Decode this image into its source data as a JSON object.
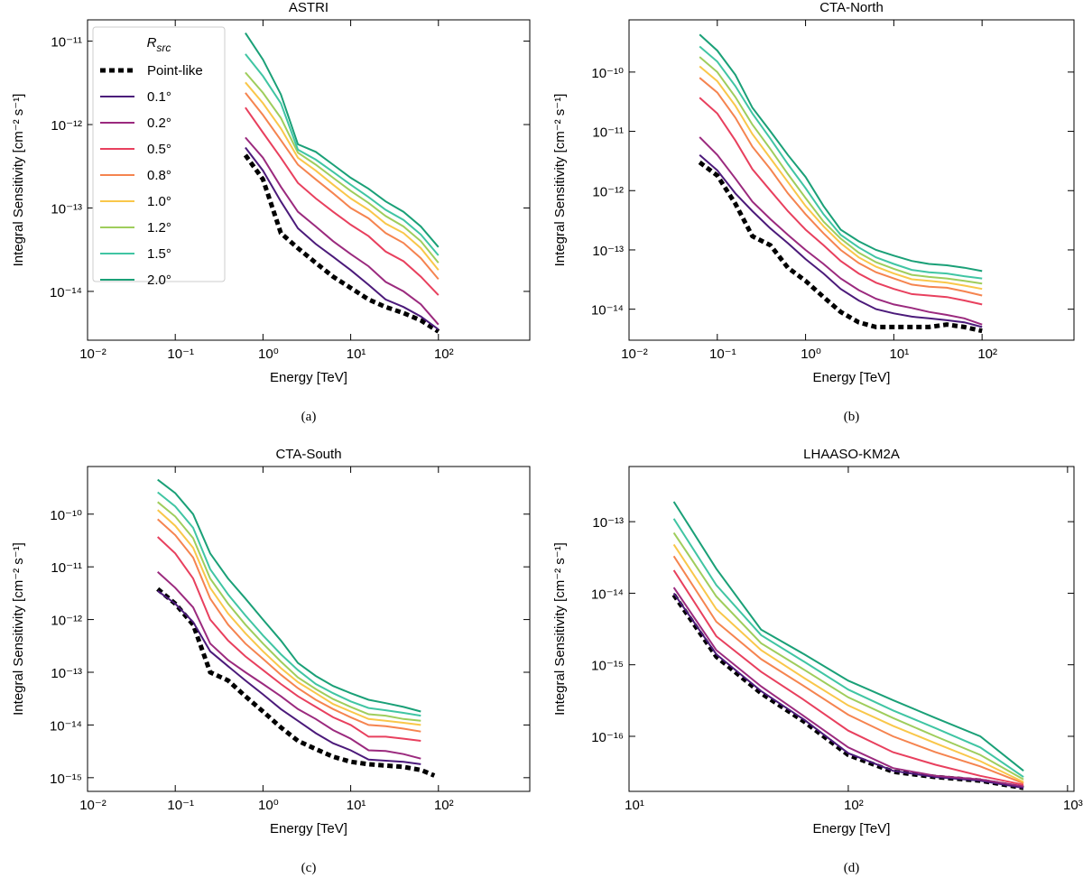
{
  "chart_data": [
    {
      "type": "line",
      "title": "ASTRI",
      "caption": "(a)",
      "xlabel": "Energy [TeV]",
      "ylabel": "Integral Sensitivity [cm⁻² s⁻¹]",
      "log_x": true,
      "log_y": true,
      "legend": "upper left",
      "legend_title": "R",
      "legend_title_subscript": "src",
      "xlim": [
        0.01,
        1100
      ],
      "ylim": [
        2.6e-15,
        1.8e-11
      ],
      "xticks": [
        {
          "value": 0.01,
          "label": "10⁻²"
        },
        {
          "value": 0.1,
          "label": "10⁻¹"
        },
        {
          "value": 1,
          "label": "10⁰"
        },
        {
          "value": 10,
          "label": "10¹"
        },
        {
          "value": 100,
          "label": "10²"
        }
      ],
      "yticks": [
        {
          "value": 1e-14,
          "label": "10⁻¹⁴"
        },
        {
          "value": 1e-13,
          "label": "10⁻¹³"
        },
        {
          "value": 1e-12,
          "label": "10⁻¹²"
        },
        {
          "value": 1e-11,
          "label": "10⁻¹¹"
        }
      ],
      "x": [
        0.63,
        1.0,
        1.6,
        2.5,
        4,
        6.3,
        10,
        16,
        25,
        40,
        63,
        100
      ],
      "series": [
        {
          "name": "Point-like",
          "color": "#000000",
          "linestyle": "dotted",
          "values": [
            4.3e-13,
            2.2e-13,
            5e-14,
            3.3e-14,
            2.2e-14,
            1.5e-14,
            1.1e-14,
            8e-15,
            6.5e-15,
            5.5e-15,
            4.5e-15,
            3.3e-15
          ]
        },
        {
          "name": "0.1°",
          "color": "#4b1a7a",
          "values": [
            5.3e-13,
            2.8e-13,
            1.2e-13,
            5.7e-14,
            3.7e-14,
            2.6e-14,
            1.8e-14,
            1.2e-14,
            8e-15,
            6.5e-15,
            5e-15,
            3.5e-15
          ]
        },
        {
          "name": "0.2°",
          "color": "#9b2a7e",
          "values": [
            7e-13,
            4e-13,
            1.8e-13,
            9e-14,
            6e-14,
            4e-14,
            2.8e-14,
            2e-14,
            1.3e-14,
            1e-14,
            7e-15,
            4e-15
          ]
        },
        {
          "name": "0.5°",
          "color": "#e8405e",
          "values": [
            1.6e-12,
            8e-13,
            4e-13,
            2e-13,
            1.3e-13,
            9e-14,
            6.3e-14,
            4.6e-14,
            3e-14,
            2.3e-14,
            1.5e-14,
            9e-15
          ]
        },
        {
          "name": "0.8°",
          "color": "#f5844f",
          "values": [
            2.4e-12,
            1.3e-12,
            6.5e-13,
            3.3e-13,
            2.2e-13,
            1.5e-13,
            1e-13,
            7.5e-14,
            5e-14,
            3.8e-14,
            2.5e-14,
            1.4e-14
          ]
        },
        {
          "name": "1.0°",
          "color": "#f9c74a",
          "values": [
            3.2e-12,
            1.8e-12,
            9e-13,
            4e-13,
            2.8e-13,
            1.9e-13,
            1.3e-13,
            9.5e-14,
            6.5e-14,
            5e-14,
            3.3e-14,
            1.8e-14
          ]
        },
        {
          "name": "1.2°",
          "color": "#9fcd5c",
          "values": [
            4.2e-12,
            2.4e-12,
            1.2e-12,
            4.6e-13,
            3.3e-13,
            2.3e-13,
            1.6e-13,
            1.15e-13,
            8e-14,
            6e-14,
            4e-14,
            2.2e-14
          ]
        },
        {
          "name": "1.5°",
          "color": "#40c5a3",
          "values": [
            7e-12,
            3.8e-12,
            1.8e-12,
            5e-13,
            3.8e-13,
            2.7e-13,
            1.9e-13,
            1.35e-13,
            9.5e-14,
            7.2e-14,
            4.8e-14,
            2.7e-14
          ]
        },
        {
          "name": "2.0°",
          "color": "#1aa077",
          "values": [
            1.25e-11,
            6e-12,
            2.3e-12,
            5.8e-13,
            4.7e-13,
            3.3e-13,
            2.3e-13,
            1.7e-13,
            1.2e-13,
            9e-14,
            6e-14,
            3.4e-14
          ]
        }
      ]
    },
    {
      "type": "line",
      "title": "CTA-North",
      "caption": "(b)",
      "xlabel": "Energy [TeV]",
      "ylabel": "Integral Sensitivity [cm⁻² s⁻¹]",
      "log_x": true,
      "log_y": true,
      "xlim": [
        0.01,
        1100
      ],
      "ylim": [
        3e-15,
        7.6e-10
      ],
      "xticks": [
        {
          "value": 0.01,
          "label": "10⁻²"
        },
        {
          "value": 0.1,
          "label": "10⁻¹"
        },
        {
          "value": 1,
          "label": "10⁰"
        },
        {
          "value": 10,
          "label": "10¹"
        },
        {
          "value": 100,
          "label": "10²"
        }
      ],
      "yticks": [
        {
          "value": 1e-14,
          "label": "10⁻¹⁴"
        },
        {
          "value": 1e-13,
          "label": "10⁻¹³"
        },
        {
          "value": 1e-12,
          "label": "10⁻¹²"
        },
        {
          "value": 1e-11,
          "label": "10⁻¹¹"
        },
        {
          "value": 1e-10,
          "label": "10⁻¹⁰"
        }
      ],
      "x": [
        0.063,
        0.1,
        0.16,
        0.25,
        0.4,
        0.63,
        1,
        1.6,
        2.5,
        4,
        6.3,
        10,
        16,
        25,
        40,
        63,
        100
      ],
      "series": [
        {
          "name": "Point-like",
          "color": "#000000",
          "linestyle": "dotted",
          "values": [
            3e-12,
            1.8e-12,
            6e-13,
            1.7e-13,
            1.2e-13,
            5e-14,
            3e-14,
            1.6e-14,
            9e-15,
            6e-15,
            5e-15,
            5e-15,
            5e-15,
            5e-15,
            5.5e-15,
            5e-15,
            4.3e-15
          ]
        },
        {
          "name": "0.1°",
          "color": "#4b1a7a",
          "values": [
            4e-12,
            2.2e-12,
            9e-13,
            4.5e-13,
            2.3e-13,
            1.3e-13,
            7e-14,
            4e-14,
            2.2e-14,
            1.4e-14,
            1e-14,
            8.5e-15,
            7.5e-15,
            7e-15,
            6.5e-15,
            6e-15,
            5e-15
          ]
        },
        {
          "name": "0.2°",
          "color": "#9b2a7e",
          "values": [
            8e-12,
            4e-12,
            1.6e-12,
            6.5e-13,
            3.3e-13,
            1.8e-13,
            1e-13,
            5.8e-14,
            3.3e-14,
            2.1e-14,
            1.5e-14,
            1.2e-14,
            1.05e-14,
            9e-15,
            8e-15,
            7e-15,
            5.5e-15
          ]
        },
        {
          "name": "0.5°",
          "color": "#e8405e",
          "values": [
            3.7e-11,
            2e-11,
            7e-12,
            2.3e-12,
            1e-12,
            4.5e-13,
            2.2e-13,
            1.2e-13,
            6.5e-14,
            4e-14,
            2.8e-14,
            2.2e-14,
            1.8e-14,
            1.7e-14,
            1.6e-14,
            1.4e-14,
            1.2e-14
          ]
        },
        {
          "name": "0.8°",
          "color": "#f5844f",
          "values": [
            8e-11,
            4.5e-11,
            1.7e-11,
            5.5e-12,
            2.3e-12,
            9e-13,
            4e-13,
            1.9e-13,
            1e-13,
            6e-14,
            4.2e-14,
            3.3e-14,
            2.6e-14,
            2.4e-14,
            2.3e-14,
            2e-14,
            1.7e-14
          ]
        },
        {
          "name": "1.0°",
          "color": "#f9c74a",
          "values": [
            1.25e-10,
            7e-11,
            2.7e-11,
            9e-12,
            3.5e-12,
            1.4e-12,
            5.5e-13,
            2.5e-13,
            1.3e-13,
            7.5e-14,
            5.2e-14,
            4e-14,
            3.2e-14,
            3e-14,
            2.8e-14,
            2.5e-14,
            2.2e-14
          ]
        },
        {
          "name": "1.2°",
          "color": "#9fcd5c",
          "values": [
            1.8e-10,
            1e-10,
            3.8e-11,
            1.3e-11,
            5e-12,
            1.9e-12,
            7.5e-13,
            3e-13,
            1.55e-13,
            9e-14,
            6.2e-14,
            4.8e-14,
            3.8e-14,
            3.5e-14,
            3.3e-14,
            3e-14,
            2.7e-14
          ]
        },
        {
          "name": "1.5°",
          "color": "#40c5a3",
          "values": [
            2.7e-10,
            1.5e-10,
            5.8e-11,
            2e-11,
            7.5e-12,
            2.8e-12,
            1.1e-12,
            4e-13,
            1.8e-13,
            1.1e-13,
            7.5e-14,
            5.8e-14,
            4.6e-14,
            4.2e-14,
            4e-14,
            3.6e-14,
            3.3e-14
          ]
        },
        {
          "name": "2.0°",
          "color": "#1aa077",
          "values": [
            4.3e-10,
            2.3e-10,
            9e-11,
            2.5e-11,
            1e-11,
            4e-12,
            1.7e-12,
            5.5e-13,
            2.2e-13,
            1.4e-13,
            1e-13,
            8e-14,
            6.5e-14,
            5.8e-14,
            5.5e-14,
            5e-14,
            4.4e-14
          ]
        }
      ]
    },
    {
      "type": "line",
      "title": "CTA-South",
      "caption": "(c)",
      "xlabel": "Energy [TeV]",
      "ylabel": "Integral Sensitivity [cm⁻² s⁻¹]",
      "log_x": true,
      "log_y": true,
      "xlim": [
        0.01,
        1100
      ],
      "ylim": [
        5.5e-16,
        8e-10
      ],
      "xticks": [
        {
          "value": 0.01,
          "label": "10⁻²"
        },
        {
          "value": 0.1,
          "label": "10⁻¹"
        },
        {
          "value": 1,
          "label": "10⁰"
        },
        {
          "value": 10,
          "label": "10¹"
        },
        {
          "value": 100,
          "label": "10²"
        }
      ],
      "yticks": [
        {
          "value": 1e-15,
          "label": "10⁻¹⁵"
        },
        {
          "value": 1e-14,
          "label": "10⁻¹⁴"
        },
        {
          "value": 1e-13,
          "label": "10⁻¹³"
        },
        {
          "value": 1e-12,
          "label": "10⁻¹²"
        },
        {
          "value": 1e-11,
          "label": "10⁻¹¹"
        },
        {
          "value": 1e-10,
          "label": "10⁻¹⁰"
        }
      ],
      "x": [
        0.063,
        0.1,
        0.16,
        0.25,
        0.4,
        0.63,
        1,
        1.6,
        2.5,
        4,
        6.3,
        10,
        16,
        25,
        40,
        63
      ],
      "series": [
        {
          "name": "Point-like",
          "color": "#000000",
          "linestyle": "dotted",
          "x": [
            0.063,
            0.1,
            0.16,
            0.25,
            0.4,
            0.63,
            1,
            1.6,
            2.5,
            4,
            6.3,
            10,
            16,
            25,
            40,
            63,
            90
          ],
          "values": [
            3.8e-12,
            2e-12,
            8e-13,
            1e-13,
            7e-14,
            3.5e-14,
            1.8e-14,
            9e-15,
            5e-15,
            3.5e-15,
            2.5e-15,
            2e-15,
            1.8e-15,
            1.7e-15,
            1.6e-15,
            1.4e-15,
            1.1e-15
          ]
        },
        {
          "name": "0.1°",
          "color": "#4b1a7a",
          "values": [
            3.5e-12,
            2e-12,
            9e-13,
            2.5e-13,
            1.3e-13,
            7e-14,
            3.8e-14,
            2e-14,
            1.2e-14,
            7e-15,
            4.5e-15,
            3.3e-15,
            2.2e-15,
            2.1e-15,
            2e-15,
            1.8e-15
          ]
        },
        {
          "name": "0.2°",
          "color": "#9b2a7e",
          "values": [
            8e-12,
            4e-12,
            1.7e-12,
            3.5e-13,
            1.7e-13,
            1e-13,
            6e-14,
            3.5e-14,
            2e-14,
            1.3e-14,
            8e-15,
            5.5e-15,
            3.3e-15,
            3.2e-15,
            2.8e-15,
            2.3e-15
          ]
        },
        {
          "name": "0.5°",
          "color": "#e8405e",
          "values": [
            3.7e-11,
            1.8e-11,
            6e-12,
            1e-12,
            4e-13,
            2e-13,
            1.1e-13,
            6e-14,
            3.5e-14,
            2.2e-14,
            1.4e-14,
            1e-14,
            6e-15,
            6e-15,
            5.5e-15,
            5e-15
          ]
        },
        {
          "name": "0.8°",
          "color": "#f5844f",
          "values": [
            8e-11,
            4e-11,
            1.5e-11,
            2.5e-12,
            8e-13,
            3.5e-13,
            1.8e-13,
            9e-14,
            5e-14,
            3e-14,
            2e-14,
            1.4e-14,
            1e-14,
            9.5e-15,
            8.5e-15,
            7.5e-15
          ]
        },
        {
          "name": "1.0°",
          "color": "#f9c74a",
          "values": [
            1.2e-10,
            6e-11,
            2.3e-11,
            4e-12,
            1.3e-12,
            5.5e-13,
            2.5e-13,
            1.2e-13,
            6.5e-14,
            4e-14,
            2.5e-14,
            1.8e-14,
            1.3e-14,
            1.2e-14,
            1.1e-14,
            1e-14
          ]
        },
        {
          "name": "1.2°",
          "color": "#9fcd5c",
          "values": [
            1.7e-10,
            9e-11,
            3.5e-11,
            6e-12,
            2e-12,
            8e-13,
            3.5e-13,
            1.6e-13,
            8e-14,
            4.8e-14,
            3.1e-14,
            2.2e-14,
            1.6e-14,
            1.5e-14,
            1.3e-14,
            1.2e-14
          ]
        },
        {
          "name": "1.5°",
          "color": "#40c5a3",
          "values": [
            2.6e-10,
            1.4e-10,
            5.5e-11,
            9e-12,
            3e-12,
            1.2e-12,
            5e-13,
            2.2e-13,
            1.1e-13,
            6e-14,
            4e-14,
            2.8e-14,
            2.1e-14,
            1.9e-14,
            1.7e-14,
            1.5e-14
          ]
        },
        {
          "name": "2.0°",
          "color": "#1aa077",
          "values": [
            4.5e-10,
            2.5e-10,
            1e-10,
            1.8e-11,
            6e-12,
            2.5e-12,
            1e-12,
            4e-13,
            1.5e-13,
            8.5e-14,
            5.5e-14,
            4e-14,
            3e-14,
            2.6e-14,
            2.2e-14,
            1.8e-14
          ]
        }
      ]
    },
    {
      "type": "line",
      "title": "LHAASO-KM2A",
      "caption": "(d)",
      "xlabel": "Energy [TeV]",
      "ylabel": "Integral Sensitivity [cm⁻² s⁻¹]",
      "log_x": true,
      "log_y": true,
      "xlim": [
        10,
        1070
      ],
      "ylim": [
        1.7e-17,
        5.9e-13
      ],
      "xticks": [
        {
          "value": 10,
          "label": "10¹"
        },
        {
          "value": 100,
          "label": "10²"
        },
        {
          "value": 1000,
          "label": "10³"
        }
      ],
      "yticks": [
        {
          "value": 1e-16,
          "label": "10⁻¹⁶"
        },
        {
          "value": 1e-15,
          "label": "10⁻¹⁵"
        },
        {
          "value": 1e-14,
          "label": "10⁻¹⁴"
        },
        {
          "value": 1e-13,
          "label": "10⁻¹³"
        }
      ],
      "x": [
        16,
        25,
        40,
        63,
        100,
        160,
        250,
        400,
        630
      ],
      "series": [
        {
          "name": "Point-like",
          "color": "#000000",
          "linestyle": "dotted",
          "values": [
            9.5e-15,
            1.3e-15,
            4e-16,
            1.6e-16,
            5.5e-17,
            3.2e-17,
            2.7e-17,
            2.4e-17,
            1.9e-17
          ]
        },
        {
          "name": "0.1°",
          "color": "#4b1a7a",
          "values": [
            1e-14,
            1.4e-15,
            4.3e-16,
            1.7e-16,
            5.8e-17,
            3.3e-17,
            2.7e-17,
            2.4e-17,
            1.9e-17
          ]
        },
        {
          "name": "0.2°",
          "color": "#9b2a7e",
          "values": [
            1.2e-14,
            1.6e-15,
            5e-16,
            1.9e-16,
            7e-17,
            3.6e-17,
            2.8e-17,
            2.5e-17,
            2e-17
          ]
        },
        {
          "name": "0.5°",
          "color": "#e8405e",
          "values": [
            2.1e-14,
            2.5e-15,
            8e-16,
            3.2e-16,
            1.2e-16,
            6e-17,
            4e-17,
            2.8e-17,
            2.1e-17
          ]
        },
        {
          "name": "0.8°",
          "color": "#f5844f",
          "values": [
            3.3e-14,
            4e-15,
            1.2e-15,
            5e-16,
            2e-16,
            1e-16,
            6e-17,
            3.8e-17,
            2.2e-17
          ]
        },
        {
          "name": "1.0°",
          "color": "#f9c74a",
          "values": [
            4.8e-14,
            6e-15,
            1.6e-15,
            6.5e-16,
            2.7e-16,
            1.4e-16,
            8e-17,
            4.5e-17,
            2.3e-17
          ]
        },
        {
          "name": "1.2°",
          "color": "#9fcd5c",
          "values": [
            7e-14,
            9e-15,
            2e-15,
            8.5e-16,
            3.5e-16,
            1.8e-16,
            1e-16,
            5.5e-17,
            2.5e-17
          ]
        },
        {
          "name": "1.5°",
          "color": "#40c5a3",
          "values": [
            1.1e-13,
            1.3e-14,
            2.6e-15,
            1.1e-15,
            4.5e-16,
            2.3e-16,
            1.3e-16,
            7e-17,
            2.7e-17
          ]
        },
        {
          "name": "2.0°",
          "color": "#1aa077",
          "values": [
            1.9e-13,
            2.2e-14,
            3.1e-15,
            1.4e-15,
            6e-16,
            3.2e-16,
            1.8e-16,
            1e-16,
            3.3e-17
          ]
        }
      ]
    }
  ]
}
